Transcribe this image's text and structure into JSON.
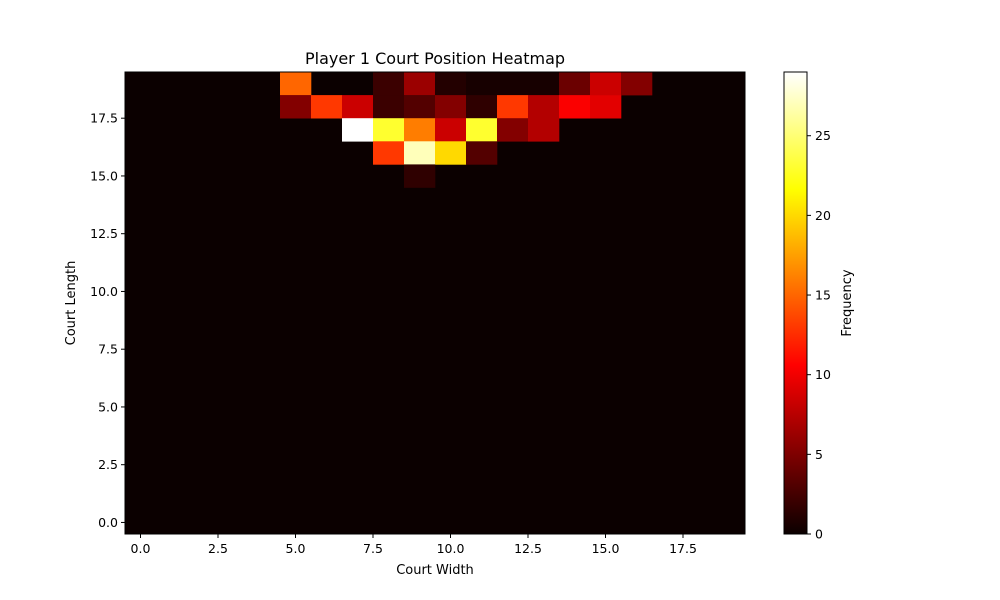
{
  "chart_data": {
    "type": "heatmap",
    "title": "Player 1 Court Position Heatmap",
    "xlabel": "Court Width",
    "ylabel": "Court Length",
    "colorbar_label": "Frequency",
    "colormap": "hot",
    "grid": false,
    "x_range": [
      -0.5,
      19.5
    ],
    "y_range": [
      -0.5,
      19.5
    ],
    "x_ticks": [
      0,
      2.5,
      5,
      7.5,
      10,
      12.5,
      15,
      17.5
    ],
    "x_tick_labels": [
      "0.0",
      "2.5",
      "5.0",
      "7.5",
      "10.0",
      "12.5",
      "15.0",
      "17.5"
    ],
    "y_ticks": [
      0,
      2.5,
      5,
      7.5,
      10,
      12.5,
      15,
      17.5
    ],
    "y_tick_labels": [
      "0.0",
      "2.5",
      "5.0",
      "7.5",
      "10.0",
      "12.5",
      "15.0",
      "17.5"
    ],
    "colorbar_range": [
      0,
      29
    ],
    "colorbar_ticks": [
      0,
      5,
      10,
      15,
      20,
      25
    ],
    "colorbar_tick_labels": [
      "0",
      "5",
      "10",
      "15",
      "20",
      "25"
    ],
    "grid_size": [
      20,
      20
    ],
    "nonzero_cells": [
      {
        "x": 5,
        "y": 19,
        "value": 15
      },
      {
        "x": 8,
        "y": 19,
        "value": 2
      },
      {
        "x": 9,
        "y": 19,
        "value": 6
      },
      {
        "x": 10,
        "y": 19,
        "value": 1
      },
      {
        "x": 11,
        "y": 19,
        "value": 0.5
      },
      {
        "x": 12,
        "y": 19,
        "value": 0.5
      },
      {
        "x": 13,
        "y": 19,
        "value": 0.5
      },
      {
        "x": 14,
        "y": 19,
        "value": 4
      },
      {
        "x": 15,
        "y": 19,
        "value": 8
      },
      {
        "x": 16,
        "y": 19,
        "value": 5
      },
      {
        "x": 5,
        "y": 18,
        "value": 5
      },
      {
        "x": 6,
        "y": 18,
        "value": 13
      },
      {
        "x": 7,
        "y": 18,
        "value": 8
      },
      {
        "x": 8,
        "y": 18,
        "value": 2
      },
      {
        "x": 9,
        "y": 18,
        "value": 3
      },
      {
        "x": 10,
        "y": 18,
        "value": 5
      },
      {
        "x": 11,
        "y": 18,
        "value": 1.5
      },
      {
        "x": 12,
        "y": 18,
        "value": 13
      },
      {
        "x": 13,
        "y": 18,
        "value": 7
      },
      {
        "x": 14,
        "y": 18,
        "value": 10
      },
      {
        "x": 15,
        "y": 18,
        "value": 9
      },
      {
        "x": 7,
        "y": 17,
        "value": 29
      },
      {
        "x": 8,
        "y": 17,
        "value": 23
      },
      {
        "x": 9,
        "y": 17,
        "value": 16
      },
      {
        "x": 10,
        "y": 17,
        "value": 8
      },
      {
        "x": 11,
        "y": 17,
        "value": 23
      },
      {
        "x": 12,
        "y": 17,
        "value": 5
      },
      {
        "x": 13,
        "y": 17,
        "value": 7
      },
      {
        "x": 8,
        "y": 16,
        "value": 13
      },
      {
        "x": 9,
        "y": 16,
        "value": 27
      },
      {
        "x": 10,
        "y": 16,
        "value": 20
      },
      {
        "x": 11,
        "y": 16,
        "value": 3
      },
      {
        "x": 9,
        "y": 15,
        "value": 1.5
      }
    ]
  }
}
